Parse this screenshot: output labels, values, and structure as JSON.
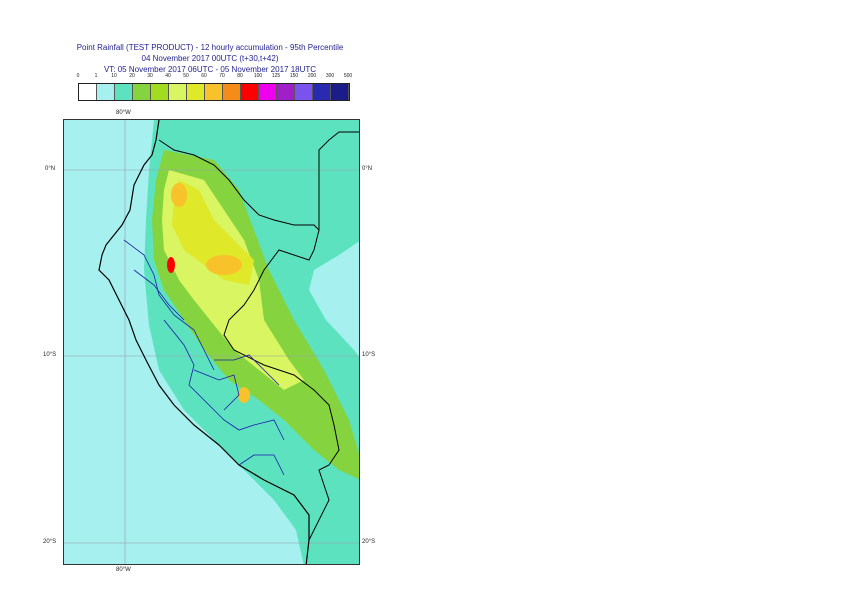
{
  "title": {
    "line1": "Point Rainfall (TEST PRODUCT) - 12 hourly accumulation - 95th Percentile",
    "line2": "04 November 2017 00UTC (t+30,t+42)",
    "line3": "VT: 05 November 2017 06UTC - 05 November 2017 18UTC"
  },
  "legend": {
    "thresholds": [
      "0",
      "1",
      "10",
      "20",
      "30",
      "40",
      "50",
      "60",
      "70",
      "80",
      "100",
      "125",
      "150",
      "200",
      "300",
      "500"
    ],
    "colors": [
      "#ffffff",
      "#a6f1ef",
      "#5de2c0",
      "#85d43f",
      "#a3db20",
      "#d9f562",
      "#e0e82a",
      "#f7c22a",
      "#f58c1a",
      "#ff0000",
      "#ee00ee",
      "#a020c8",
      "#7a52ee",
      "#2a2ab0",
      "#1b1b8a",
      "#0a0a50"
    ]
  },
  "map": {
    "lon_labels": {
      "top": "80°W",
      "bottom": "80°W"
    },
    "lat_labels": [
      "0°N",
      "10°S",
      "20°S"
    ],
    "colors": {
      "ocean": "#a6f1ef",
      "land_light": "#5de2c0",
      "green": "#85d43f",
      "yellow_green": "#d9f562",
      "yellow": "#e0e82a",
      "orange": "#f7c22a",
      "red": "#ff0000",
      "border": "#000000",
      "admin_border": "#0000aa"
    }
  }
}
